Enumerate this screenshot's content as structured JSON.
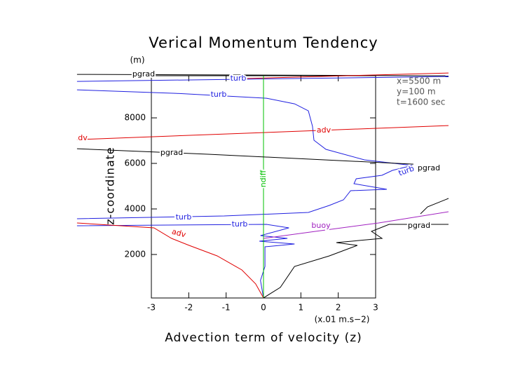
{
  "chart_data": {
    "type": "line",
    "title": "Verical Momentum Tendency",
    "y_unit": "(m)",
    "ylabel": "z-coordinate",
    "xlabel": "Advection term of velocity (z)",
    "x_unit": "(x.01 m.s−2)",
    "info": [
      "x=5500 m",
      "y=100 m",
      "t=1600 sec"
    ],
    "clipped_label": "dv",
    "xlim": [
      -3,
      3
    ],
    "xticks": [
      -3,
      -2,
      -1,
      0,
      1,
      2,
      3
    ],
    "ylim": [
      90,
      9850
    ],
    "yticks": [
      2000,
      4000,
      6000,
      8000
    ],
    "series": [
      {
        "name": "pgrad",
        "color": "#000000",
        "x": [
          -4.99,
          4.95
        ],
        "y": [
          9908,
          9846
        ]
      },
      {
        "color": "#e00000",
        "x": [
          -0.58,
          4.95
        ],
        "y": [
          9723,
          9969
        ]
      },
      {
        "name": "turb",
        "color": "#2020e0",
        "x": [
          -4.99,
          4.95
        ],
        "y": [
          9600,
          9815
        ]
      },
      {
        "name": "turb",
        "color": "#2020e0",
        "x": [
          -4.99,
          -2.36,
          0.08,
          0.83,
          1.2,
          1.31,
          1.35,
          1.67,
          2.7,
          3.98,
          3.45,
          3.17,
          2.48,
          2.42,
          3.3,
          2.33,
          2.14,
          1.76,
          1.2,
          -1.05,
          -4.99
        ],
        "y": [
          9231,
          9077,
          8862,
          8616,
          8308,
          7631,
          7016,
          6616,
          6154,
          5908,
          5692,
          5477,
          5323,
          5108,
          4862,
          4800,
          4400,
          4154,
          3846,
          3692,
          3569
        ]
      },
      {
        "name": "turb",
        "color": "#2020e0",
        "x": [
          -4.99,
          0.08,
          0.68,
          -0.08,
          0.64,
          -0.11,
          0.83,
          0.04,
          0.04,
          -0.08,
          0
        ],
        "y": [
          3262,
          3323,
          3169,
          2831,
          2708,
          2585,
          2462,
          2338,
          1477,
          862,
          92
        ]
      },
      {
        "name": "adv",
        "color": "#e00000",
        "x": [
          -4.99,
          4.95
        ],
        "y": [
          7046,
          7662
        ]
      },
      {
        "name": "adv",
        "color": "#e00000",
        "x": [
          -4.99,
          -2.93,
          -2.46,
          -1.99,
          -1.24,
          -0.58,
          -0.21,
          0
        ],
        "y": [
          3385,
          3169,
          2708,
          2400,
          1938,
          1323,
          708,
          92
        ]
      },
      {
        "name": "ndiff",
        "color": "#00c000",
        "x": [
          0,
          0
        ],
        "y": [
          9846,
          92
        ]
      },
      {
        "name": "buoy",
        "color": "#a020c0",
        "x": [
          0,
          1.39,
          3.08,
          4.95
        ],
        "y": [
          2708,
          3015,
          3385,
          3877
        ]
      },
      {
        "name": "pgrad",
        "color": "#000000",
        "x": [
          -4.99,
          -1.43,
          4.01
        ],
        "y": [
          6646,
          6400,
          5969
        ]
      },
      {
        "name": "pgrad",
        "color": "#000000",
        "x": [
          0,
          0.45,
          0.83,
          1.76,
          2.51,
          1.95,
          3.17,
          2.89,
          3.36,
          4.95
        ],
        "y": [
          92,
          554,
          1477,
          1938,
          2400,
          2523,
          2708,
          3015,
          3323,
          3323
        ]
      },
      {
        "color": "#000000",
        "x": [
          4.2,
          4.39,
          4.95
        ],
        "y": [
          3785,
          4092,
          4462
        ]
      }
    ]
  }
}
